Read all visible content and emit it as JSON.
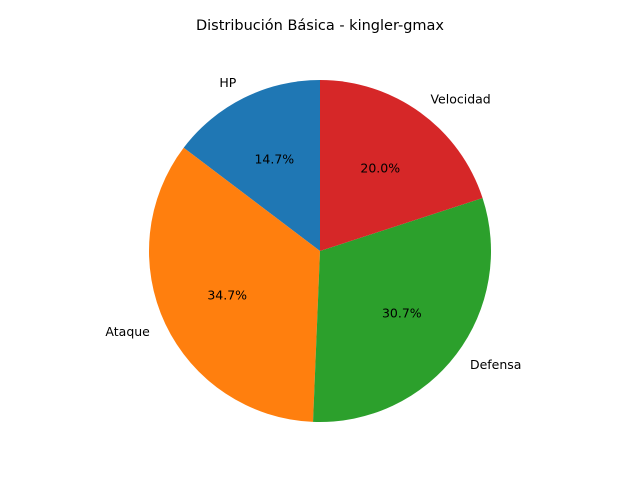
{
  "chart_data": {
    "type": "pie",
    "title": "Distribución Básica - kingler-gmax",
    "categories": [
      "HP",
      "Ataque",
      "Defensa",
      "Velocidad"
    ],
    "values": [
      14.7,
      34.7,
      30.7,
      20.0
    ],
    "value_labels": [
      "14.7%",
      "34.7%",
      "30.7%",
      "20.0%"
    ],
    "colors": [
      "#1f77b4",
      "#ff7f0e",
      "#2ca02c",
      "#d62728"
    ],
    "start_angle_deg": 90,
    "direction": "counterclockwise",
    "legend": "none"
  }
}
